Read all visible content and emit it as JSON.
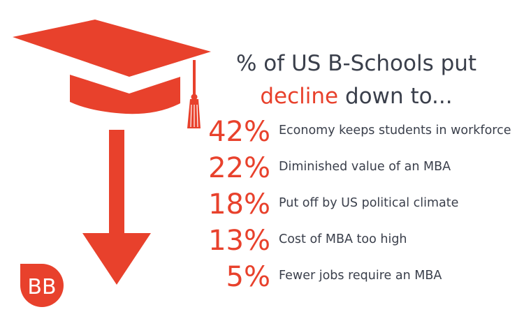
{
  "title": {
    "line1": "% of US B-Schools put",
    "accent": "decline",
    "rest": " down to..."
  },
  "colors": {
    "accent": "#e8412c",
    "text": "#3a3f4b",
    "background": "#ffffff"
  },
  "icons": [
    "graduation-cap-icon",
    "down-arrow-icon",
    "bb-logo-icon"
  ],
  "logo": {
    "text": "BB"
  },
  "chart_data": {
    "type": "table",
    "title": "% of US B-Schools put decline down to...",
    "columns": [
      "percent",
      "reason"
    ],
    "rows": [
      {
        "value": 42,
        "label": "42%",
        "reason": "Economy keeps students in workforce"
      },
      {
        "value": 22,
        "label": "22%",
        "reason": "Diminished value of an MBA"
      },
      {
        "value": 18,
        "label": "18%",
        "reason": "Put off by US political climate"
      },
      {
        "value": 13,
        "label": "13%",
        "reason": "Cost of MBA too high"
      },
      {
        "value": 5,
        "label": "5%",
        "reason": "Fewer jobs require an MBA"
      }
    ]
  }
}
